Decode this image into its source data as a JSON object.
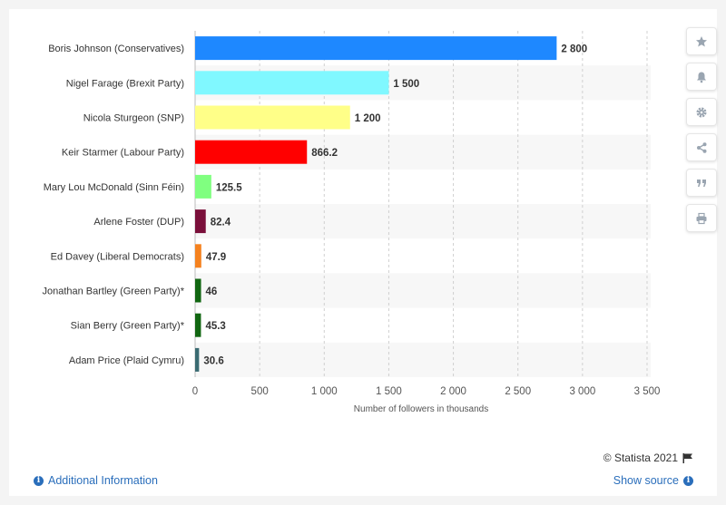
{
  "chart_data": {
    "type": "bar",
    "orientation": "horizontal",
    "categories": [
      "Boris Johnson (Conservatives)",
      "Nigel Farage (Brexit Party)",
      "Nicola Sturgeon (SNP)",
      "Keir Starmer (Labour Party)",
      "Mary Lou McDonald (Sinn Féin)",
      "Arlene Foster (DUP)",
      "Ed Davey (Liberal Democrats)",
      "Jonathan Bartley (Green Party)*",
      "Sian Berry (Green Party)*",
      "Adam Price (Plaid Cymru)"
    ],
    "values": [
      2800,
      1500,
      1200,
      866.2,
      125.5,
      82.4,
      47.9,
      46,
      45.3,
      30.6
    ],
    "value_labels": [
      "2 800",
      "1 500",
      "1 200",
      "866.2",
      "125.5",
      "82.4",
      "47.9",
      "46",
      "45.3",
      "30.6"
    ],
    "bar_colors": [
      "#1e88ff",
      "#80f8ff",
      "#ffff88",
      "#ff0000",
      "#80ff80",
      "#7a0f3a",
      "#f5821f",
      "#116611",
      "#116611",
      "#3a6b72"
    ],
    "xlabel": "Number of followers in thousands",
    "xlim": [
      0,
      3500
    ],
    "xticks": [
      0,
      500,
      1000,
      1500,
      2000,
      2500,
      3000,
      3500
    ],
    "xtick_labels": [
      "0",
      "500",
      "1 000",
      "1 500",
      "2 000",
      "2 500",
      "3 000",
      "3 500"
    ],
    "grid": true,
    "alternating_row_bands": true
  },
  "sidebar": {
    "buttons": [
      {
        "name": "favorite",
        "icon": "star-icon"
      },
      {
        "name": "notification",
        "icon": "bell-icon"
      },
      {
        "name": "settings",
        "icon": "gear-icon"
      },
      {
        "name": "share",
        "icon": "share-icon"
      },
      {
        "name": "cite",
        "icon": "quote-icon"
      },
      {
        "name": "print",
        "icon": "print-icon"
      }
    ]
  },
  "footer": {
    "credit": "© Statista 2021",
    "additional_info": "Additional Information",
    "show_source": "Show source"
  }
}
